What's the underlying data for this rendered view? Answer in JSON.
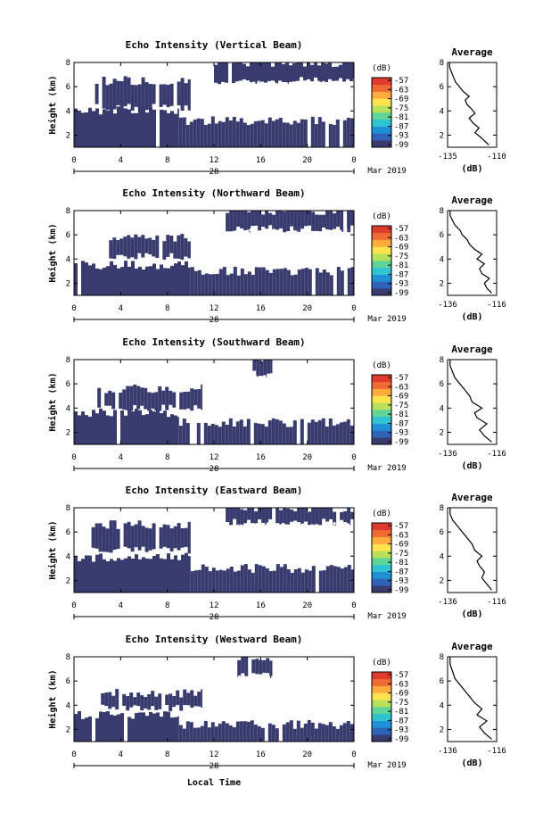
{
  "figure": {
    "x_axis_label": "Local Time",
    "date_label": "Mar 2019",
    "day_label": "28",
    "y_axis_label": "Height (km)"
  },
  "colors": {
    "echo": "#373b6e",
    "colorbar": [
      "#373b6e",
      "#2f63b7",
      "#1f8fd6",
      "#2ec4d0",
      "#5fd59a",
      "#b7e15a",
      "#ffe44d",
      "#ffac3c",
      "#f06a32",
      "#e03b2e"
    ]
  },
  "chart_data": [
    {
      "type": "heatmap",
      "title": "Echo Intensity (Vertical Beam)",
      "xlabel": "Local Time",
      "ylabel": "Height (km)",
      "x_ticks": [
        "0",
        "4",
        "8",
        "12",
        "16",
        "20",
        "0"
      ],
      "y_ticks": [
        "2",
        "4",
        "6",
        "8"
      ],
      "xlim": [
        0,
        24
      ],
      "ylim": [
        1,
        8
      ],
      "colorbar": {
        "unit": "(dB)",
        "ticks": [
          "-57",
          "-63",
          "-69",
          "-75",
          "-81",
          "-87",
          "-93",
          "-99"
        ]
      },
      "echo_regions": [
        {
          "t": [
            0,
            9
          ],
          "h": [
            1,
            4
          ]
        },
        {
          "t": [
            9,
            24
          ],
          "h": [
            1,
            3.2
          ]
        },
        {
          "t": [
            1.5,
            10
          ],
          "h": [
            4.3,
            6.5
          ]
        },
        {
          "t": [
            12,
            24
          ],
          "h": [
            6.5,
            8
          ]
        }
      ]
    },
    {
      "type": "line",
      "title": "Average",
      "xlabel": "(dB)",
      "x_ticks": [
        "-135",
        "-110"
      ],
      "y_ticks": [
        "2",
        "4",
        "6",
        "8"
      ],
      "x": [
        -114,
        -116,
        -118,
        -121,
        -119,
        -122,
        -124,
        -121,
        -123,
        -125,
        -126,
        -124,
        -127,
        -129,
        -131,
        -132,
        -133,
        -134,
        -134,
        -134
      ],
      "y": [
        1.2,
        1.5,
        1.8,
        2.2,
        2.6,
        3.0,
        3.4,
        3.8,
        4.2,
        4.5,
        4.9,
        5.2,
        5.6,
        6.0,
        6.4,
        6.8,
        7.2,
        7.6,
        7.8,
        8.0
      ],
      "xlim": [
        -135,
        -110
      ],
      "ylim": [
        1,
        8
      ]
    },
    {
      "type": "heatmap",
      "title": "Echo Intensity (Northward Beam)",
      "xlabel": "Local Time",
      "ylabel": "Height (km)",
      "x_ticks": [
        "0",
        "4",
        "8",
        "12",
        "16",
        "20",
        "0"
      ],
      "y_ticks": [
        "2",
        "4",
        "6",
        "8"
      ],
      "xlim": [
        0,
        24
      ],
      "ylim": [
        1,
        8
      ],
      "colorbar": {
        "unit": "(dB)",
        "ticks": [
          "-57",
          "-63",
          "-69",
          "-75",
          "-81",
          "-87",
          "-93",
          "-99"
        ]
      },
      "echo_regions": [
        {
          "t": [
            0,
            10
          ],
          "h": [
            1,
            3.5
          ]
        },
        {
          "t": [
            10,
            24
          ],
          "h": [
            1,
            3.0
          ]
        },
        {
          "t": [
            3,
            10
          ],
          "h": [
            4.2,
            5.8
          ]
        },
        {
          "t": [
            13,
            24
          ],
          "h": [
            6.5,
            8
          ]
        }
      ]
    },
    {
      "type": "line",
      "title": "Average",
      "xlabel": "(dB)",
      "x_ticks": [
        "-136",
        "-116"
      ],
      "y_ticks": [
        "2",
        "4",
        "6",
        "8"
      ],
      "x": [
        -118,
        -120,
        -121,
        -119,
        -122,
        -123,
        -121,
        -124,
        -122,
        -125,
        -127,
        -128,
        -130,
        -131,
        -133,
        -134,
        -135,
        -135
      ],
      "y": [
        1.2,
        1.6,
        2.0,
        2.4,
        2.8,
        3.2,
        3.6,
        4.0,
        4.4,
        4.8,
        5.2,
        5.6,
        6.0,
        6.4,
        6.8,
        7.2,
        7.6,
        8.0
      ],
      "xlim": [
        -136,
        -116
      ],
      "ylim": [
        1,
        8
      ]
    },
    {
      "type": "heatmap",
      "title": "Echo Intensity (Southward Beam)",
      "xlabel": "Local Time",
      "ylabel": "Height (km)",
      "x_ticks": [
        "0",
        "4",
        "8",
        "12",
        "16",
        "20",
        "0"
      ],
      "y_ticks": [
        "2",
        "4",
        "6",
        "8"
      ],
      "xlim": [
        0,
        24
      ],
      "ylim": [
        1,
        8
      ],
      "colorbar": {
        "unit": "(dB)",
        "ticks": [
          "-57",
          "-63",
          "-69",
          "-75",
          "-81",
          "-87",
          "-93",
          "-99"
        ]
      },
      "echo_regions": [
        {
          "t": [
            0,
            9
          ],
          "h": [
            1,
            3.6
          ]
        },
        {
          "t": [
            9,
            24
          ],
          "h": [
            1,
            2.8
          ]
        },
        {
          "t": [
            2,
            11
          ],
          "h": [
            4.0,
            5.6
          ]
        },
        {
          "t": [
            15,
            17
          ],
          "h": [
            6.8,
            8
          ]
        }
      ]
    },
    {
      "type": "line",
      "title": "Average",
      "xlabel": "(dB)",
      "x_ticks": [
        "-136",
        "-116"
      ],
      "y_ticks": [
        "2",
        "4",
        "6",
        "8"
      ],
      "x": [
        -118,
        -121,
        -123,
        -120,
        -124,
        -125,
        -122,
        -126,
        -127,
        -129,
        -131,
        -133,
        -134,
        -135,
        -135
      ],
      "y": [
        1.2,
        1.7,
        2.2,
        2.7,
        3.2,
        3.6,
        4.0,
        4.5,
        5.0,
        5.5,
        6.0,
        6.5,
        7.0,
        7.5,
        8.0
      ],
      "xlim": [
        -136,
        -116
      ],
      "ylim": [
        1,
        8
      ]
    },
    {
      "type": "heatmap",
      "title": "Echo Intensity (Eastward Beam)",
      "xlabel": "Local Time",
      "ylabel": "Height (km)",
      "x_ticks": [
        "0",
        "4",
        "8",
        "12",
        "16",
        "20",
        "0"
      ],
      "y_ticks": [
        "2",
        "4",
        "6",
        "8"
      ],
      "xlim": [
        0,
        24
      ],
      "ylim": [
        1,
        8
      ],
      "colorbar": {
        "unit": "(dB)",
        "ticks": [
          "-57",
          "-63",
          "-69",
          "-75",
          "-81",
          "-87",
          "-93",
          "-99"
        ]
      },
      "echo_regions": [
        {
          "t": [
            0,
            10
          ],
          "h": [
            1,
            3.9
          ]
        },
        {
          "t": [
            10,
            24
          ],
          "h": [
            1,
            3.0
          ]
        },
        {
          "t": [
            1.5,
            10
          ],
          "h": [
            4.5,
            6.6
          ]
        },
        {
          "t": [
            13,
            24
          ],
          "h": [
            6.8,
            8
          ]
        }
      ]
    },
    {
      "type": "line",
      "title": "Average",
      "xlabel": "(dB)",
      "x_ticks": [
        "-136",
        "-116"
      ],
      "y_ticks": [
        "2",
        "4",
        "6",
        "8"
      ],
      "x": [
        -118,
        -120,
        -122,
        -121,
        -123,
        -124,
        -122,
        -125,
        -126,
        -128,
        -130,
        -132,
        -134,
        -135,
        -135
      ],
      "y": [
        1.2,
        1.7,
        2.2,
        2.7,
        3.2,
        3.6,
        4.0,
        4.5,
        5.0,
        5.5,
        6.0,
        6.5,
        7.0,
        7.5,
        8.0
      ],
      "xlim": [
        -136,
        -116
      ],
      "ylim": [
        1,
        8
      ]
    },
    {
      "type": "heatmap",
      "title": "Echo Intensity (Westward Beam)",
      "xlabel": "Local Time",
      "ylabel": "Height (km)",
      "x_ticks": [
        "0",
        "4",
        "8",
        "12",
        "16",
        "20",
        "0"
      ],
      "y_ticks": [
        "2",
        "4",
        "6",
        "8"
      ],
      "xlim": [
        0,
        24
      ],
      "ylim": [
        1,
        8
      ],
      "colorbar": {
        "unit": "(dB)",
        "ticks": [
          "-57",
          "-63",
          "-69",
          "-75",
          "-81",
          "-87",
          "-93",
          "-99"
        ]
      },
      "echo_regions": [
        {
          "t": [
            0,
            9
          ],
          "h": [
            1,
            3.2
          ]
        },
        {
          "t": [
            9,
            24
          ],
          "h": [
            1,
            2.4
          ]
        },
        {
          "t": [
            2,
            11
          ],
          "h": [
            3.8,
            5.0
          ]
        },
        {
          "t": [
            14,
            17
          ],
          "h": [
            6.5,
            8
          ]
        }
      ]
    },
    {
      "type": "line",
      "title": "Average",
      "xlabel": "(dB)",
      "x_ticks": [
        "-136",
        "-116"
      ],
      "y_ticks": [
        "2",
        "4",
        "6",
        "8"
      ],
      "x": [
        -118,
        -121,
        -123,
        -120,
        -124,
        -122,
        -125,
        -127,
        -129,
        -131,
        -133,
        -134,
        -135,
        -135
      ],
      "y": [
        1.2,
        1.7,
        2.2,
        2.7,
        3.2,
        3.7,
        4.2,
        4.7,
        5.2,
        5.7,
        6.2,
        6.8,
        7.4,
        8.0
      ],
      "xlim": [
        -136,
        -116
      ],
      "ylim": [
        1,
        8
      ]
    }
  ]
}
